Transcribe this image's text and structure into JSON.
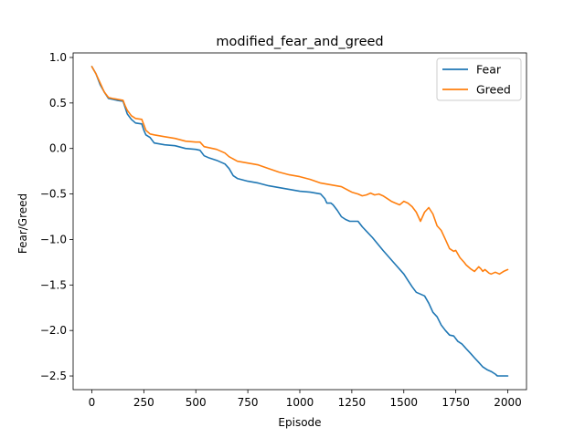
{
  "chart_data": {
    "type": "line",
    "title": "modified_fear_and_greed",
    "xlabel": "Episode",
    "ylabel": "Fear/Greed",
    "xlim": [
      -90,
      2090
    ],
    "ylim": [
      -2.65,
      1.05
    ],
    "xticks": [
      0,
      250,
      500,
      750,
      1000,
      1250,
      1500,
      1750,
      2000
    ],
    "yticks": [
      1.0,
      0.5,
      0.0,
      -0.5,
      -1.0,
      -1.5,
      -2.0,
      -2.5
    ],
    "xtick_labels": [
      "0",
      "250",
      "500",
      "750",
      "1000",
      "1250",
      "1500",
      "1750",
      "2000"
    ],
    "ytick_labels": [
      "1.0",
      "0.5",
      "0.0",
      "−0.5",
      "−1.0",
      "−1.5",
      "−2.0",
      "−2.5"
    ],
    "grid": false,
    "legend_position": "top-right",
    "series": [
      {
        "name": "Fear",
        "color": "#1f77b4",
        "x": [
          0,
          20,
          40,
          60,
          80,
          100,
          120,
          150,
          160,
          170,
          190,
          210,
          240,
          250,
          260,
          280,
          300,
          350,
          400,
          450,
          500,
          520,
          540,
          560,
          600,
          640,
          660,
          680,
          700,
          750,
          800,
          850,
          900,
          950,
          1000,
          1050,
          1100,
          1120,
          1130,
          1150,
          1160,
          1180,
          1200,
          1220,
          1240,
          1280,
          1300,
          1350,
          1400,
          1450,
          1500,
          1520,
          1540,
          1560,
          1580,
          1600,
          1620,
          1640,
          1660,
          1680,
          1700,
          1720,
          1740,
          1760,
          1780,
          1800,
          1820,
          1840,
          1860,
          1880,
          1900,
          1920,
          1940,
          1950,
          1960,
          1980,
          2000
        ],
        "y": [
          0.9,
          0.82,
          0.7,
          0.62,
          0.55,
          0.54,
          0.53,
          0.52,
          0.45,
          0.38,
          0.32,
          0.28,
          0.27,
          0.2,
          0.15,
          0.12,
          0.06,
          0.04,
          0.03,
          0.0,
          -0.01,
          -0.02,
          -0.08,
          -0.1,
          -0.13,
          -0.17,
          -0.22,
          -0.3,
          -0.33,
          -0.36,
          -0.38,
          -0.41,
          -0.43,
          -0.45,
          -0.47,
          -0.48,
          -0.5,
          -0.55,
          -0.6,
          -0.6,
          -0.62,
          -0.68,
          -0.75,
          -0.78,
          -0.8,
          -0.8,
          -0.86,
          -0.98,
          -1.12,
          -1.25,
          -1.38,
          -1.45,
          -1.52,
          -1.58,
          -1.6,
          -1.62,
          -1.7,
          -1.8,
          -1.85,
          -1.94,
          -2.0,
          -2.05,
          -2.06,
          -2.12,
          -2.15,
          -2.2,
          -2.25,
          -2.3,
          -2.35,
          -2.4,
          -2.43,
          -2.45,
          -2.48,
          -2.5,
          -2.5,
          -2.5,
          -2.5
        ]
      },
      {
        "name": "Greed",
        "color": "#ff7f0e",
        "x": [
          0,
          20,
          40,
          60,
          80,
          100,
          150,
          160,
          170,
          190,
          210,
          240,
          250,
          260,
          280,
          300,
          350,
          400,
          450,
          500,
          520,
          540,
          600,
          640,
          660,
          700,
          750,
          800,
          850,
          900,
          950,
          1000,
          1050,
          1100,
          1150,
          1200,
          1250,
          1280,
          1300,
          1320,
          1340,
          1360,
          1380,
          1400,
          1420,
          1440,
          1460,
          1480,
          1500,
          1520,
          1540,
          1560,
          1580,
          1600,
          1620,
          1640,
          1660,
          1680,
          1700,
          1720,
          1740,
          1750,
          1770,
          1790,
          1800,
          1820,
          1840,
          1860,
          1870,
          1880,
          1890,
          1900,
          1910,
          1920,
          1940,
          1960,
          1980,
          2000
        ],
        "y": [
          0.9,
          0.82,
          0.72,
          0.62,
          0.56,
          0.55,
          0.53,
          0.47,
          0.42,
          0.36,
          0.33,
          0.32,
          0.26,
          0.2,
          0.16,
          0.15,
          0.13,
          0.11,
          0.08,
          0.07,
          0.07,
          0.02,
          -0.01,
          -0.05,
          -0.09,
          -0.14,
          -0.16,
          -0.18,
          -0.22,
          -0.26,
          -0.29,
          -0.31,
          -0.34,
          -0.38,
          -0.4,
          -0.42,
          -0.48,
          -0.5,
          -0.52,
          -0.51,
          -0.49,
          -0.51,
          -0.5,
          -0.52,
          -0.55,
          -0.58,
          -0.6,
          -0.62,
          -0.58,
          -0.6,
          -0.64,
          -0.7,
          -0.8,
          -0.7,
          -0.65,
          -0.72,
          -0.85,
          -0.9,
          -1.0,
          -1.1,
          -1.13,
          -1.12,
          -1.2,
          -1.25,
          -1.28,
          -1.32,
          -1.35,
          -1.3,
          -1.32,
          -1.35,
          -1.33,
          -1.35,
          -1.37,
          -1.38,
          -1.36,
          -1.38,
          -1.35,
          -1.33
        ]
      }
    ]
  }
}
